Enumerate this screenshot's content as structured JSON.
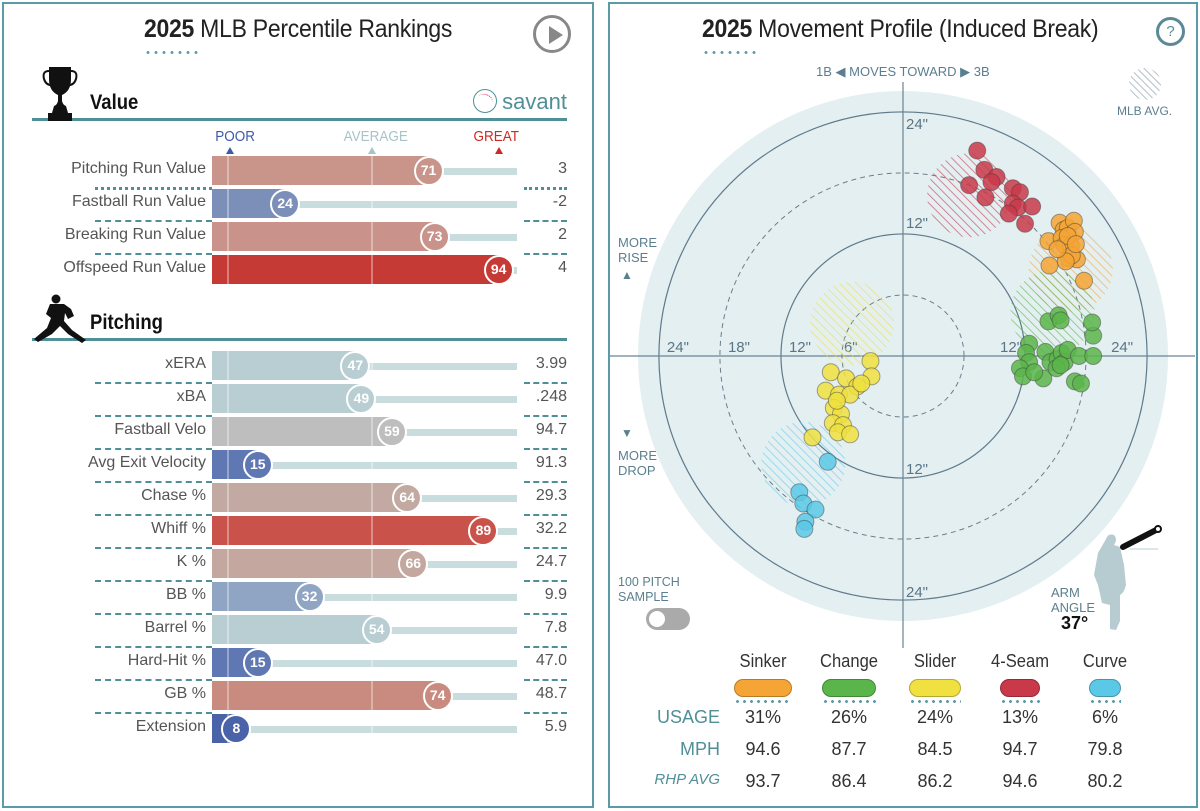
{
  "left_panel": {
    "title_year": "2025",
    "title_rest": " MLB Percentile Rankings",
    "play_button": "play",
    "value_section": {
      "label": "Value",
      "icon": "trophy-icon",
      "brand": "savant"
    },
    "scale": {
      "poor": "POOR",
      "average": "AVERAGE",
      "great": "GREAT"
    },
    "colors": {
      "poor": "#3d5aa8",
      "average": "#a8c4c8",
      "great": "#cc2a26"
    },
    "value_rows": [
      {
        "name": "Pitching Run Value",
        "pct": 71,
        "value": "3",
        "color": "#c9958b"
      },
      {
        "name": "Fastball Run Value",
        "pct": 24,
        "value": "-2",
        "color": "#7b8fb8"
      },
      {
        "name": "Breaking Run Value",
        "pct": 73,
        "value": "2",
        "color": "#c9928a"
      },
      {
        "name": "Offspeed Run Value",
        "pct": 94,
        "value": "4",
        "color": "#c63a36"
      }
    ],
    "pitching_section": {
      "label": "Pitching",
      "icon": "pitcher-icon"
    },
    "pitching_rows": [
      {
        "name": "xERA",
        "pct": 47,
        "value": "3.99",
        "color": "#b9ced2"
      },
      {
        "name": "xBA",
        "pct": 49,
        "value": ".248",
        "color": "#b9ced2"
      },
      {
        "name": "Fastball Velo",
        "pct": 59,
        "value": "94.7",
        "color": "#bebebe"
      },
      {
        "name": "Avg Exit Velocity",
        "pct": 15,
        "value": "91.3",
        "color": "#5f77b3"
      },
      {
        "name": "Chase %",
        "pct": 64,
        "value": "29.3",
        "color": "#c2aaa3"
      },
      {
        "name": "Whiff %",
        "pct": 89,
        "value": "32.2",
        "color": "#c9534a"
      },
      {
        "name": "K %",
        "pct": 66,
        "value": "24.7",
        "color": "#c4a79f"
      },
      {
        "name": "BB %",
        "pct": 32,
        "value": "9.9",
        "color": "#90a5c3"
      },
      {
        "name": "Barrel %",
        "pct": 54,
        "value": "7.8",
        "color": "#b9ced2"
      },
      {
        "name": "Hard-Hit %",
        "pct": 15,
        "value": "47.0",
        "color": "#5f77b3"
      },
      {
        "name": "GB %",
        "pct": 74,
        "value": "48.7",
        "color": "#c98b7f"
      },
      {
        "name": "Extension",
        "pct": 8,
        "value": "5.9",
        "color": "#4a62a8"
      }
    ]
  },
  "right_panel": {
    "title_year": "2025",
    "title_rest": " Movement Profile (Induced Break)",
    "help_button": "?",
    "direction_label": {
      "left": "1B",
      "middle": "MOVES TOWARD",
      "right": "3B"
    },
    "legend_mlb_avg": "MLB AVG.",
    "more_rise": "MORE\nRISE",
    "more_drop": "MORE\nDROP",
    "sample_toggle": {
      "label": "100 PITCH\nSAMPLE",
      "on": false
    },
    "arm_angle": {
      "label": "ARM\nANGLE",
      "value": "37°"
    },
    "row_labels": {
      "usage": "USAGE",
      "mph": "MPH",
      "rhp_avg": "RHP AVG"
    }
  },
  "chart_data": [
    {
      "type": "bar",
      "title": "2025 MLB Percentile Rankings",
      "orientation": "horizontal",
      "xlim": [
        0,
        100
      ],
      "categories": [
        "Pitching Run Value",
        "Fastball Run Value",
        "Breaking Run Value",
        "Offspeed Run Value",
        "xERA",
        "xBA",
        "Fastball Velo",
        "Avg Exit Velocity",
        "Chase %",
        "Whiff %",
        "K %",
        "BB %",
        "Barrel %",
        "Hard-Hit %",
        "GB %",
        "Extension"
      ],
      "values": [
        71,
        24,
        73,
        94,
        47,
        49,
        59,
        15,
        64,
        89,
        66,
        32,
        54,
        15,
        74,
        8
      ],
      "raw_values": [
        "3",
        "-2",
        "2",
        "4",
        "3.99",
        ".248",
        "94.7",
        "91.3",
        "29.3",
        "32.2",
        "24.7",
        "9.9",
        "7.8",
        "47.0",
        "48.7",
        "5.9"
      ]
    },
    {
      "type": "scatter",
      "title": "2025 Movement Profile (Induced Break)",
      "coordinate": "polar-like grid, inches of break",
      "x_ticks": [
        "24\"",
        "18\"",
        "12\"",
        "6\"",
        "12\"",
        "24\""
      ],
      "y_ticks": [
        "24\"",
        "12\"",
        "12\"",
        "24\""
      ],
      "rings_inches": [
        6,
        12,
        18,
        24
      ],
      "xlabel": "1B ◀ MOVES TOWARD ▶ 3B",
      "ylabel_top": "MORE RISE",
      "ylabel_bottom": "MORE DROP",
      "series": [
        {
          "name": "Sinker",
          "color": "#f4a535",
          "usage": "31%",
          "mph": "94.6",
          "rhp_avg": "93.7",
          "mlb_avg": {
            "x": 16.5,
            "y": 8.5
          },
          "points": [
            [
              14.3,
              11.3
            ],
            [
              15.4,
              13.1
            ],
            [
              15.8,
              12.4
            ],
            [
              16.2,
              12.6
            ],
            [
              16.8,
              13.3
            ],
            [
              16.9,
              12.2
            ],
            [
              15.6,
              11.6
            ],
            [
              15.9,
              10.9
            ],
            [
              16.5,
              10.8
            ],
            [
              16.3,
              9.6
            ],
            [
              17.1,
              9.5
            ],
            [
              16.6,
              9.9
            ],
            [
              16.0,
              9.3
            ],
            [
              14.4,
              8.9
            ],
            [
              17.8,
              7.4
            ],
            [
              16.2,
              11.8
            ],
            [
              15.2,
              10.5
            ],
            [
              17.0,
              11.0
            ]
          ]
        },
        {
          "name": "Change",
          "color": "#5ab54a",
          "usage": "26%",
          "mph": "87.7",
          "rhp_avg": "86.4",
          "mlb_avg": {
            "x": 14.7,
            "y": 4.3
          },
          "points": [
            [
              12.4,
              1.2
            ],
            [
              12.1,
              0.3
            ],
            [
              12.4,
              -0.6
            ],
            [
              11.5,
              -1.2
            ],
            [
              11.8,
              -2.0
            ],
            [
              14.0,
              0.4
            ],
            [
              14.5,
              -0.6
            ],
            [
              15.2,
              -0.3
            ],
            [
              15.6,
              0.3
            ],
            [
              15.9,
              -0.6
            ],
            [
              16.2,
              0.6
            ],
            [
              17.3,
              0.0
            ],
            [
              18.7,
              0.0
            ],
            [
              18.7,
              2.0
            ],
            [
              18.6,
              3.3
            ],
            [
              14.3,
              3.4
            ],
            [
              15.3,
              4.0
            ],
            [
              15.5,
              3.5
            ],
            [
              13.8,
              -2.2
            ],
            [
              15.1,
              -1.2
            ],
            [
              16.9,
              -2.5
            ],
            [
              17.5,
              -2.7
            ],
            [
              12.9,
              -1.6
            ],
            [
              15.5,
              -0.9
            ]
          ]
        },
        {
          "name": "Slider",
          "color": "#f0e040",
          "usage": "24%",
          "mph": "84.5",
          "rhp_avg": "86.2",
          "mlb_avg": {
            "x": -5.0,
            "y": 3.2
          },
          "points": [
            [
              -3.2,
              -0.5
            ],
            [
              -7.1,
              -1.6
            ],
            [
              -5.6,
              -2.2
            ],
            [
              -3.1,
              -2.0
            ],
            [
              -4.5,
              -3.0
            ],
            [
              -7.6,
              -3.4
            ],
            [
              -6.3,
              -3.8
            ],
            [
              -5.2,
              -3.8
            ],
            [
              -6.8,
              -5.1
            ],
            [
              -6.1,
              -5.7
            ],
            [
              -6.9,
              -6.6
            ],
            [
              -5.9,
              -6.8
            ],
            [
              -6.4,
              -7.5
            ],
            [
              -5.2,
              -7.7
            ],
            [
              -8.9,
              -8.0
            ],
            [
              -4.1,
              -2.7
            ],
            [
              -6.5,
              -4.4
            ]
          ]
        },
        {
          "name": "4-Seam",
          "color": "#c9394a",
          "usage": "13%",
          "mph": "94.7",
          "rhp_avg": "94.6",
          "mlb_avg": {
            "x": 6.5,
            "y": 15.8
          },
          "points": [
            [
              7.3,
              20.2
            ],
            [
              8.0,
              18.3
            ],
            [
              9.2,
              17.6
            ],
            [
              8.7,
              17.1
            ],
            [
              6.5,
              16.8
            ],
            [
              8.1,
              15.6
            ],
            [
              10.8,
              16.5
            ],
            [
              11.5,
              16.1
            ],
            [
              10.8,
              15.0
            ],
            [
              11.3,
              14.6
            ],
            [
              12.7,
              14.7
            ],
            [
              12.0,
              13.0
            ],
            [
              10.4,
              14.0
            ]
          ]
        },
        {
          "name": "Curve",
          "color": "#5ac8e6",
          "usage": "6%",
          "mph": "79.8",
          "rhp_avg": "80.2",
          "mlb_avg": {
            "x": -9.8,
            "y": -10.6
          },
          "points": [
            [
              -7.4,
              -10.4
            ],
            [
              -10.2,
              -13.4
            ],
            [
              -9.8,
              -14.5
            ],
            [
              -8.6,
              -15.1
            ],
            [
              -9.6,
              -16.3
            ],
            [
              -9.7,
              -17.0
            ]
          ]
        }
      ]
    }
  ]
}
